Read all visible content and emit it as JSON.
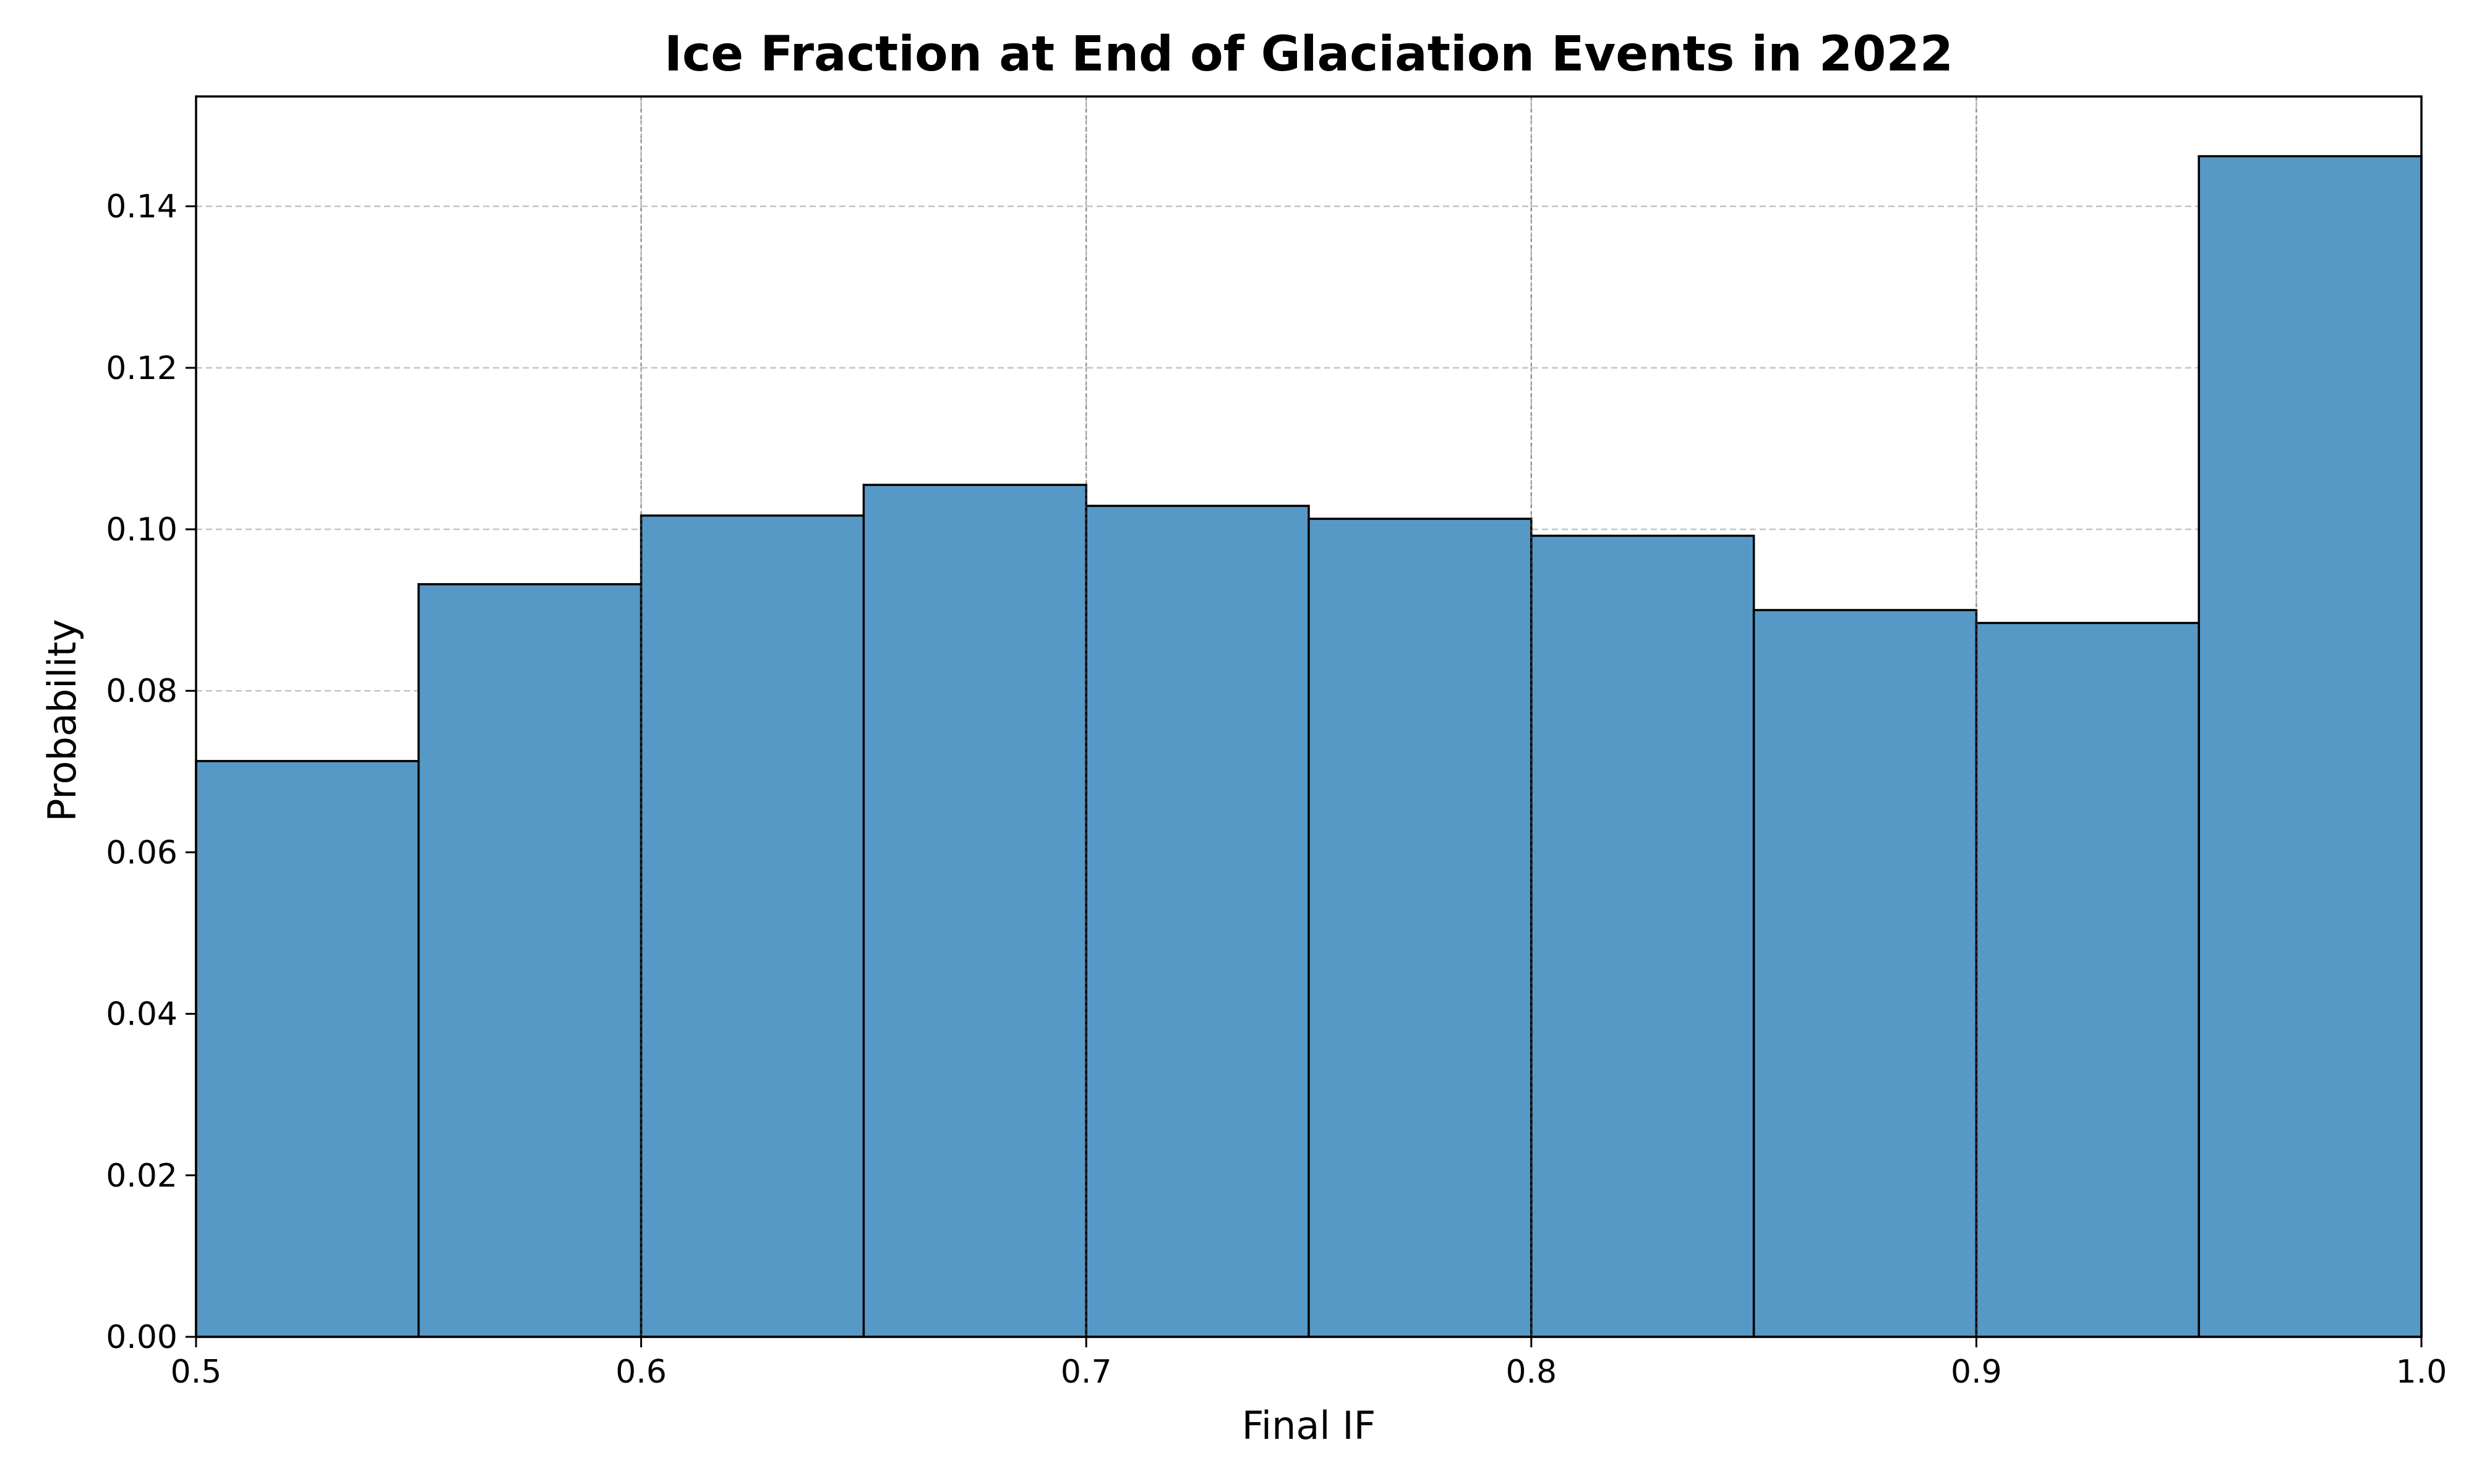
{
  "chart_data": {
    "type": "bar",
    "title": "Ice Fraction at End of Glaciation Events in 2022",
    "xlabel": "Final IF",
    "ylabel": "Probability",
    "bin_edges": [
      0.5,
      0.55,
      0.6,
      0.65,
      0.7,
      0.75,
      0.8,
      0.85,
      0.9,
      0.95,
      1.0
    ],
    "values": [
      0.0713,
      0.0932,
      0.1017,
      0.1055,
      0.1029,
      0.1013,
      0.0992,
      0.09,
      0.0884,
      0.1462
    ],
    "xlim": [
      0.5,
      1.0
    ],
    "ylim": [
      0.0,
      0.1536
    ],
    "xticks": [
      0.5,
      0.6,
      0.7,
      0.8,
      0.9,
      1.0
    ],
    "xtick_labels": [
      "0.5",
      "0.6",
      "0.7",
      "0.8",
      "0.9",
      "1.0"
    ],
    "yticks": [
      0.0,
      0.02,
      0.04,
      0.06,
      0.08,
      0.1,
      0.12,
      0.14
    ],
    "ytick_labels": [
      "0.00",
      "0.02",
      "0.04",
      "0.06",
      "0.08",
      "0.10",
      "0.12",
      "0.14"
    ],
    "grid": true,
    "bar_color": "#5799c6",
    "edge_color": "#000000",
    "grid_color": "#c4c4c4"
  }
}
